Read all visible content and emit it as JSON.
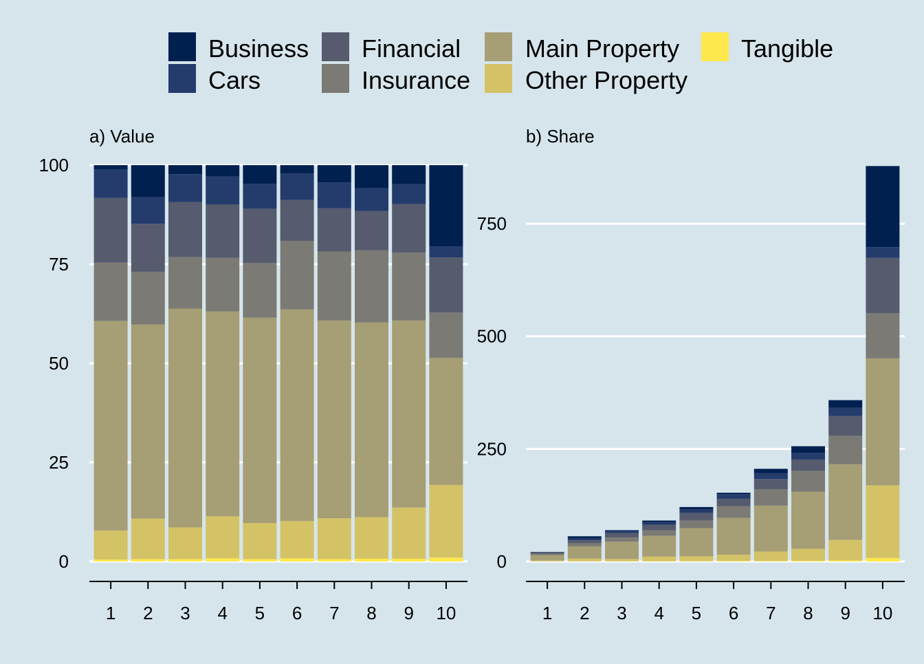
{
  "colors": {
    "background": "#d6e5ec",
    "gridline": "#ffffff",
    "axis": "#000000",
    "Business": "#002050",
    "Cars": "#233c6c",
    "Financial": "#565b6d",
    "Insurance": "#7b7a74",
    "Main Property": "#a69e74",
    "Other Property": "#d4c267",
    "Tangible": "#fde74c"
  },
  "legend": {
    "entries": [
      "Business",
      "Cars",
      "Financial",
      "Insurance",
      "Main Property",
      "Other Property",
      "Tangible"
    ],
    "placement": "top"
  },
  "chart_data": [
    {
      "type": "bar",
      "stacked": true,
      "title": "a) Value",
      "xlabel": "",
      "ylabel": "",
      "categories": [
        "1",
        "2",
        "3",
        "4",
        "5",
        "6",
        "7",
        "8",
        "9",
        "10"
      ],
      "ylim": [
        0,
        100
      ],
      "yticks": [
        0,
        25,
        50,
        75,
        100
      ],
      "grid": "horizontal",
      "series": [
        {
          "name": "Tangible",
          "values": [
            0.5,
            0.6,
            0.6,
            0.8,
            0.6,
            0.8,
            0.6,
            0.7,
            0.7,
            1.0
          ]
        },
        {
          "name": "Other Property",
          "values": [
            7.3,
            10.2,
            8.0,
            10.6,
            9.1,
            9.4,
            10.3,
            10.5,
            12.9,
            18.3
          ]
        },
        {
          "name": "Main Property",
          "values": [
            52.9,
            49.0,
            55.2,
            51.7,
            51.8,
            53.4,
            49.9,
            49.1,
            47.2,
            32.1
          ]
        },
        {
          "name": "Insurance",
          "values": [
            14.7,
            13.3,
            13.0,
            13.5,
            13.8,
            17.3,
            17.4,
            18.2,
            17.1,
            11.4
          ]
        },
        {
          "name": "Financial",
          "values": [
            16.3,
            12.1,
            13.9,
            13.5,
            13.7,
            10.3,
            10.9,
            9.9,
            12.3,
            13.9
          ]
        },
        {
          "name": "Cars",
          "values": [
            7.2,
            6.7,
            7.0,
            7.0,
            6.3,
            6.7,
            6.5,
            5.8,
            5.0,
            2.8
          ]
        },
        {
          "name": "Business",
          "values": [
            1.1,
            8.1,
            2.3,
            2.9,
            4.7,
            2.1,
            4.4,
            5.8,
            4.8,
            20.5
          ]
        }
      ]
    },
    {
      "type": "bar",
      "stacked": true,
      "title": "b) Share",
      "xlabel": "",
      "ylabel": "",
      "categories": [
        "1",
        "2",
        "3",
        "4",
        "5",
        "6",
        "7",
        "8",
        "9",
        "10"
      ],
      "ylim": [
        0,
        880
      ],
      "yticks": [
        0,
        250,
        500,
        750
      ],
      "grid": "horizontal",
      "series": [
        {
          "name": "Tangible",
          "values": [
            0.2,
            0.3,
            0.3,
            0.6,
            0.6,
            1.1,
            1.1,
            1.6,
            2.3,
            8.0
          ]
        },
        {
          "name": "Other Property",
          "values": [
            1.8,
            6.0,
            5.3,
            10.3,
            10.9,
            14.0,
            21.1,
            26.5,
            45.5,
            161.0
          ]
        },
        {
          "name": "Main Property",
          "values": [
            12.0,
            27.0,
            38.4,
            46.0,
            62.5,
            81.9,
            101.8,
            126.9,
            168.2,
            282.0
          ]
        },
        {
          "name": "Insurance",
          "values": [
            3.0,
            7.3,
            9.3,
            12.1,
            16.8,
            25.9,
            36.2,
            46.2,
            63.0,
            100.0
          ]
        },
        {
          "name": "Financial",
          "values": [
            3.1,
            6.6,
            9.7,
            12.7,
            17.1,
            16.3,
            22.8,
            25.1,
            43.9,
            123.0
          ]
        },
        {
          "name": "Cars",
          "values": [
            1.0,
            4.1,
            4.4,
            6.2,
            7.7,
            10.3,
            13.4,
            14.6,
            18.3,
            24.0
          ]
        },
        {
          "name": "Business",
          "values": [
            0.3,
            4.7,
            2.1,
            3.0,
            5.3,
            3.1,
            9.3,
            15.0,
            17.0,
            180.0
          ]
        }
      ]
    }
  ]
}
